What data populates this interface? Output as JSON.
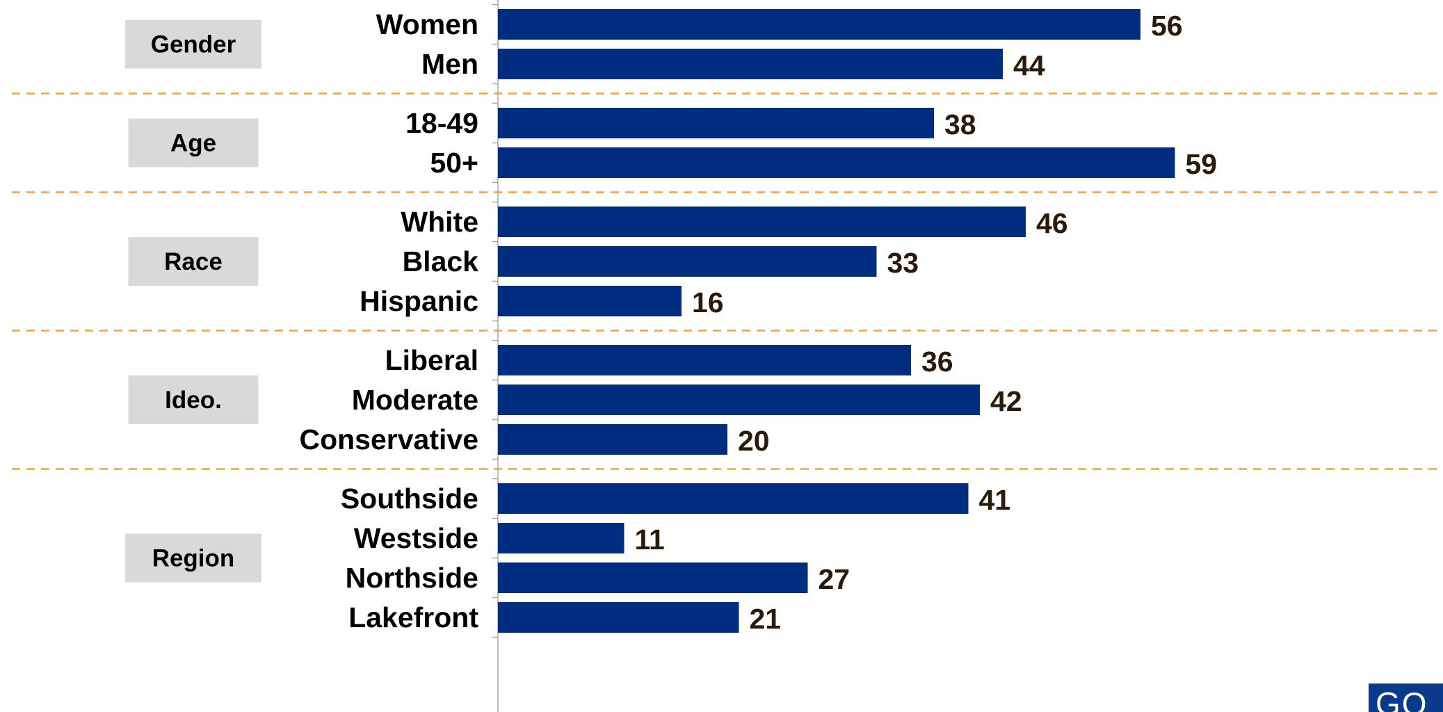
{
  "colors": {
    "bar": "#002d80",
    "separator": "#f2a43a",
    "group_box": "#d9d9d9",
    "axis": "#a6a6a6",
    "value_text": "#2b1a0a"
  },
  "logo": {
    "text": "GQ"
  },
  "chart_data": {
    "type": "bar",
    "orientation": "horizontal",
    "xlim": [
      0,
      100
    ],
    "groups": [
      {
        "name": "Gender",
        "categories": [
          "Women",
          "Men"
        ],
        "values": [
          56,
          44
        ]
      },
      {
        "name": "Age",
        "categories": [
          "18-49",
          "50+"
        ],
        "values": [
          38,
          59
        ]
      },
      {
        "name": "Race",
        "categories": [
          "White",
          "Black",
          "Hispanic"
        ],
        "values": [
          46,
          33,
          16
        ]
      },
      {
        "name": "Ideo.",
        "categories": [
          "Liberal",
          "Moderate",
          "Conservative"
        ],
        "values": [
          36,
          42,
          20
        ]
      },
      {
        "name": "Region",
        "categories": [
          "Southside",
          "Westside",
          "Northside",
          "Lakefront"
        ],
        "values": [
          41,
          11,
          27,
          21
        ]
      }
    ]
  }
}
